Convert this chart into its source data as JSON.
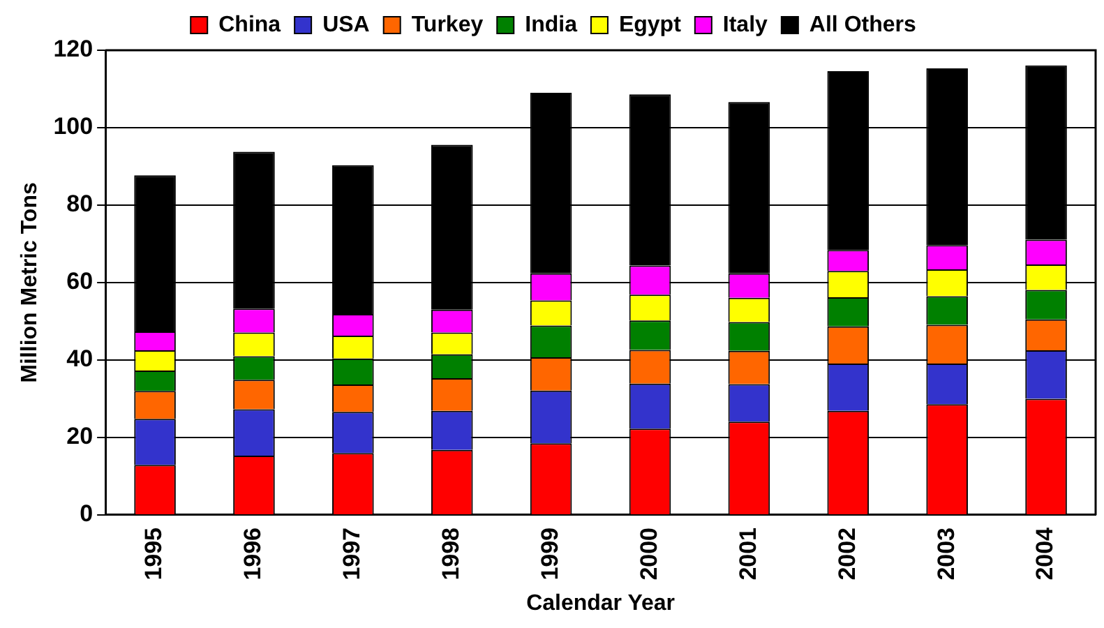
{
  "chart_data": {
    "type": "bar",
    "stacked": true,
    "xlabel": "Calendar Year",
    "ylabel": "Million Metric Tons",
    "categories": [
      "1995",
      "1996",
      "1997",
      "1998",
      "1999",
      "2000",
      "2001",
      "2002",
      "2003",
      "2004"
    ],
    "series": [
      {
        "name": "China",
        "color": "#ff0000",
        "values": [
          12.9,
          15.3,
          16.0,
          16.8,
          18.5,
          22.3,
          24.1,
          26.9,
          28.6,
          30.0
        ]
      },
      {
        "name": "USA",
        "color": "#3333cc",
        "values": [
          11.9,
          12.0,
          10.6,
          10.1,
          13.6,
          11.6,
          9.7,
          12.2,
          10.5,
          12.5
        ]
      },
      {
        "name": "Turkey",
        "color": "#ff6600",
        "values": [
          7.2,
          7.6,
          7.1,
          8.4,
          8.6,
          8.7,
          8.6,
          9.6,
          10.0,
          8.0
        ]
      },
      {
        "name": "India",
        "color": "#008000",
        "values": [
          5.3,
          6.1,
          6.7,
          6.2,
          8.2,
          7.6,
          7.4,
          7.5,
          7.4,
          7.6
        ]
      },
      {
        "name": "Egypt",
        "color": "#ffff00",
        "values": [
          5.2,
          6.1,
          5.9,
          5.6,
          6.5,
          6.7,
          6.3,
          6.8,
          6.9,
          6.6
        ]
      },
      {
        "name": "Italy",
        "color": "#ff00ff",
        "values": [
          4.9,
          6.2,
          5.6,
          5.9,
          7.0,
          7.5,
          6.3,
          5.4,
          6.3,
          6.4
        ]
      },
      {
        "name": "All Others",
        "color": "#000000",
        "values": [
          40.3,
          40.5,
          38.4,
          42.6,
          46.6,
          44.2,
          44.2,
          46.2,
          45.6,
          45.0
        ]
      }
    ],
    "ylim": [
      0,
      120
    ],
    "yticks": [
      0,
      20,
      40,
      60,
      80,
      100,
      120
    ],
    "grid": "y",
    "legend": "top"
  }
}
